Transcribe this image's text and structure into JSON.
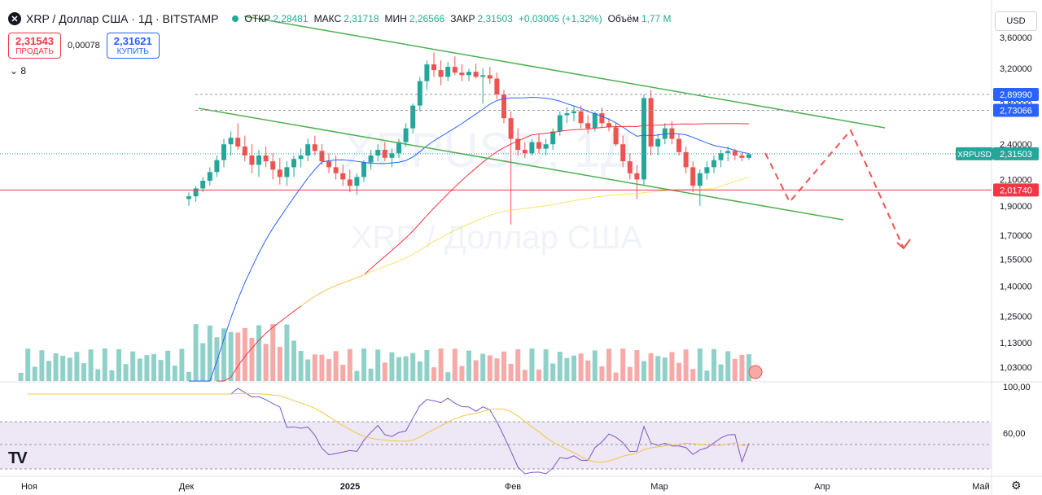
{
  "header": {
    "symbol_icon": "x-icon",
    "title": "XRP / Доллар США · 1Д · BITSTAMP",
    "ohlc": [
      {
        "label": "ОТКР",
        "value": "2,28481"
      },
      {
        "label": "МАКС",
        "value": "2,31718"
      },
      {
        "label": "МИН",
        "value": "2,26566"
      },
      {
        "label": "ЗАКР",
        "value": "2,31503"
      },
      {
        "label": "",
        "value": "+0,03005 (+1,32%)"
      },
      {
        "label": "Объём",
        "value": "1,77 M"
      }
    ]
  },
  "trade": {
    "sell_price": "2,31543",
    "sell_label": "ПРОДАТЬ",
    "spread": "0,00078",
    "buy_price": "2,31621",
    "buy_label": "КУПИТЬ"
  },
  "indicators_toggle": "8",
  "currency": "USD",
  "watermark": "XRPUSD, 1Д",
  "watermark_sub": "XRP / Доллар США",
  "colors": {
    "up": "#26a69a",
    "down": "#ef5350",
    "up_vol": "#8fd1c9",
    "down_vol": "#f7a9a7",
    "ma_blue": "#2962ff",
    "ma_red": "#f23645",
    "ma_yellow": "#f5e46b",
    "channel": "#4caf50",
    "projection": "#ef5350",
    "rsi": "#7e57c2",
    "rsi_ma": "#f5c742"
  },
  "chart_data": {
    "type": "candlestick",
    "price_axis_ticks": [
      "3,60000",
      "3,20000",
      "2,80000",
      "2,40000",
      "2,10000",
      "1,90000",
      "1,70000",
      "1,55000",
      "1,40000",
      "1,25000",
      "1,13000",
      "1,03000"
    ],
    "price_labels": [
      {
        "value": "2,89990",
        "kind": "high"
      },
      {
        "value": "2,73066",
        "kind": "high"
      },
      {
        "value": "2,31503",
        "kind": "last",
        "tag": "XRPUSD"
      },
      {
        "value": "2,01740",
        "kind": "support"
      }
    ],
    "x_labels": [
      "Ноя",
      "Дек",
      "2025",
      "Фев",
      "Мар",
      "Апр",
      "Май"
    ],
    "rsi_axis_ticks": [
      "100,00",
      "60,00"
    ],
    "candles": [
      {
        "o": 1.95,
        "h": 2.0,
        "l": 1.9,
        "c": 1.97
      },
      {
        "o": 1.97,
        "h": 2.05,
        "l": 1.93,
        "c": 2.03
      },
      {
        "o": 2.03,
        "h": 2.12,
        "l": 2.0,
        "c": 2.09
      },
      {
        "o": 2.09,
        "h": 2.2,
        "l": 2.05,
        "c": 2.16
      },
      {
        "o": 2.16,
        "h": 2.3,
        "l": 2.12,
        "c": 2.26
      },
      {
        "o": 2.26,
        "h": 2.45,
        "l": 2.2,
        "c": 2.4
      },
      {
        "o": 2.4,
        "h": 2.52,
        "l": 2.3,
        "c": 2.46
      },
      {
        "o": 2.46,
        "h": 2.6,
        "l": 2.35,
        "c": 2.38
      },
      {
        "o": 2.38,
        "h": 2.48,
        "l": 2.25,
        "c": 2.3
      },
      {
        "o": 2.3,
        "h": 2.4,
        "l": 2.15,
        "c": 2.22
      },
      {
        "o": 2.22,
        "h": 2.35,
        "l": 2.12,
        "c": 2.3
      },
      {
        "o": 2.3,
        "h": 2.38,
        "l": 2.2,
        "c": 2.25
      },
      {
        "o": 2.25,
        "h": 2.32,
        "l": 2.1,
        "c": 2.18
      },
      {
        "o": 2.18,
        "h": 2.28,
        "l": 2.06,
        "c": 2.12
      },
      {
        "o": 2.12,
        "h": 2.25,
        "l": 2.05,
        "c": 2.2
      },
      {
        "o": 2.2,
        "h": 2.3,
        "l": 2.12,
        "c": 2.27
      },
      {
        "o": 2.27,
        "h": 2.36,
        "l": 2.2,
        "c": 2.3
      },
      {
        "o": 2.3,
        "h": 2.45,
        "l": 2.25,
        "c": 2.4
      },
      {
        "o": 2.4,
        "h": 2.48,
        "l": 2.3,
        "c": 2.34
      },
      {
        "o": 2.34,
        "h": 2.4,
        "l": 2.22,
        "c": 2.25
      },
      {
        "o": 2.25,
        "h": 2.32,
        "l": 2.15,
        "c": 2.2
      },
      {
        "o": 2.2,
        "h": 2.3,
        "l": 2.1,
        "c": 2.15
      },
      {
        "o": 2.15,
        "h": 2.22,
        "l": 2.05,
        "c": 2.1
      },
      {
        "o": 2.1,
        "h": 2.18,
        "l": 2.0,
        "c": 2.05
      },
      {
        "o": 2.05,
        "h": 2.15,
        "l": 1.98,
        "c": 2.12
      },
      {
        "o": 2.12,
        "h": 2.26,
        "l": 2.08,
        "c": 2.24
      },
      {
        "o": 2.24,
        "h": 2.35,
        "l": 2.18,
        "c": 2.3
      },
      {
        "o": 2.3,
        "h": 2.4,
        "l": 2.25,
        "c": 2.35
      },
      {
        "o": 2.35,
        "h": 2.42,
        "l": 2.25,
        "c": 2.28
      },
      {
        "o": 2.28,
        "h": 2.36,
        "l": 2.2,
        "c": 2.32
      },
      {
        "o": 2.32,
        "h": 2.45,
        "l": 2.28,
        "c": 2.42
      },
      {
        "o": 2.42,
        "h": 2.6,
        "l": 2.38,
        "c": 2.55
      },
      {
        "o": 2.55,
        "h": 2.8,
        "l": 2.5,
        "c": 2.78
      },
      {
        "o": 2.78,
        "h": 3.1,
        "l": 2.72,
        "c": 3.05
      },
      {
        "o": 3.05,
        "h": 3.3,
        "l": 2.95,
        "c": 3.25
      },
      {
        "o": 3.25,
        "h": 3.4,
        "l": 3.1,
        "c": 3.18
      },
      {
        "o": 3.18,
        "h": 3.3,
        "l": 3.0,
        "c": 3.1
      },
      {
        "o": 3.1,
        "h": 3.28,
        "l": 3.05,
        "c": 3.22
      },
      {
        "o": 3.22,
        "h": 3.35,
        "l": 3.12,
        "c": 3.15
      },
      {
        "o": 3.15,
        "h": 3.25,
        "l": 3.05,
        "c": 3.12
      },
      {
        "o": 3.12,
        "h": 3.2,
        "l": 3.05,
        "c": 3.16
      },
      {
        "o": 3.16,
        "h": 3.26,
        "l": 3.08,
        "c": 3.1
      },
      {
        "o": 3.1,
        "h": 3.2,
        "l": 2.8,
        "c": 3.12
      },
      {
        "o": 3.12,
        "h": 3.22,
        "l": 3.02,
        "c": 3.08
      },
      {
        "o": 3.08,
        "h": 3.15,
        "l": 2.85,
        "c": 2.9
      },
      {
        "o": 2.9,
        "h": 2.95,
        "l": 2.6,
        "c": 2.65
      },
      {
        "o": 2.65,
        "h": 2.72,
        "l": 1.77,
        "c": 2.45
      },
      {
        "o": 2.45,
        "h": 2.55,
        "l": 2.3,
        "c": 2.35
      },
      {
        "o": 2.35,
        "h": 2.42,
        "l": 2.28,
        "c": 2.32
      },
      {
        "o": 2.32,
        "h": 2.45,
        "l": 2.3,
        "c": 2.42
      },
      {
        "o": 2.42,
        "h": 2.5,
        "l": 2.32,
        "c": 2.36
      },
      {
        "o": 2.36,
        "h": 2.45,
        "l": 2.3,
        "c": 2.4
      },
      {
        "o": 2.4,
        "h": 2.55,
        "l": 2.35,
        "c": 2.52
      },
      {
        "o": 2.52,
        "h": 2.72,
        "l": 2.48,
        "c": 2.68
      },
      {
        "o": 2.68,
        "h": 2.76,
        "l": 2.6,
        "c": 2.7
      },
      {
        "o": 2.7,
        "h": 2.78,
        "l": 2.62,
        "c": 2.72
      },
      {
        "o": 2.72,
        "h": 2.78,
        "l": 2.55,
        "c": 2.6
      },
      {
        "o": 2.6,
        "h": 2.68,
        "l": 2.5,
        "c": 2.55
      },
      {
        "o": 2.55,
        "h": 2.72,
        "l": 2.52,
        "c": 2.7
      },
      {
        "o": 2.7,
        "h": 2.76,
        "l": 2.55,
        "c": 2.6
      },
      {
        "o": 2.6,
        "h": 2.65,
        "l": 2.52,
        "c": 2.56
      },
      {
        "o": 2.56,
        "h": 2.6,
        "l": 2.38,
        "c": 2.4
      },
      {
        "o": 2.4,
        "h": 2.48,
        "l": 2.2,
        "c": 2.25
      },
      {
        "o": 2.25,
        "h": 2.32,
        "l": 2.1,
        "c": 2.15
      },
      {
        "o": 2.15,
        "h": 2.22,
        "l": 1.95,
        "c": 2.1
      },
      {
        "o": 2.1,
        "h": 2.9,
        "l": 2.05,
        "c": 2.86
      },
      {
        "o": 2.86,
        "h": 2.95,
        "l": 2.3,
        "c": 2.38
      },
      {
        "o": 2.38,
        "h": 2.5,
        "l": 2.3,
        "c": 2.45
      },
      {
        "o": 2.45,
        "h": 2.6,
        "l": 2.4,
        "c": 2.55
      },
      {
        "o": 2.55,
        "h": 2.62,
        "l": 2.4,
        "c": 2.45
      },
      {
        "o": 2.45,
        "h": 2.5,
        "l": 2.3,
        "c": 2.33
      },
      {
        "o": 2.33,
        "h": 2.38,
        "l": 2.15,
        "c": 2.2
      },
      {
        "o": 2.2,
        "h": 2.25,
        "l": 2.0,
        "c": 2.05
      },
      {
        "o": 2.05,
        "h": 2.18,
        "l": 1.9,
        "c": 2.15
      },
      {
        "o": 2.15,
        "h": 2.25,
        "l": 2.1,
        "c": 2.2
      },
      {
        "o": 2.2,
        "h": 2.3,
        "l": 2.15,
        "c": 2.26
      },
      {
        "o": 2.26,
        "h": 2.35,
        "l": 2.2,
        "c": 2.32
      },
      {
        "o": 2.32,
        "h": 2.38,
        "l": 2.25,
        "c": 2.34
      },
      {
        "o": 2.34,
        "h": 2.36,
        "l": 2.26,
        "c": 2.3
      },
      {
        "o": 2.3,
        "h": 2.33,
        "l": 2.25,
        "c": 2.28
      },
      {
        "o": 2.28,
        "h": 2.32,
        "l": 2.26,
        "c": 2.31
      }
    ]
  }
}
